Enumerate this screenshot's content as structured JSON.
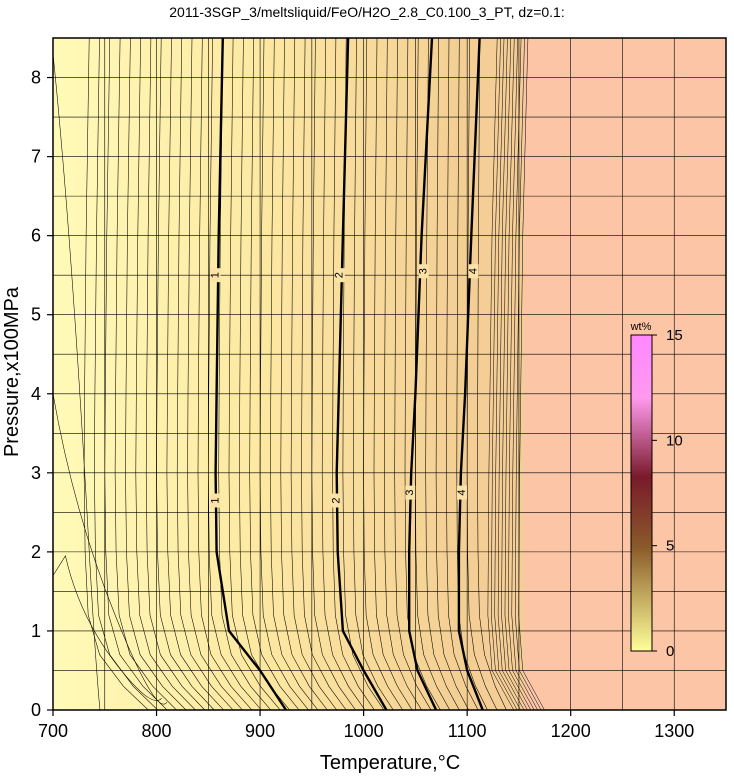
{
  "chart_data": {
    "type": "contour",
    "title": "2011-3SGP_3/meltsliquid/FeO/H2O_2.8_C0.100_3_PT, dz=0.1:",
    "xlabel": "Temperature,°C",
    "ylabel": "Pressure,x100MPa",
    "xlim": [
      700,
      1350
    ],
    "ylim": [
      0,
      8.5
    ],
    "x_ticks": [
      700,
      800,
      900,
      1000,
      1100,
      1200,
      1300
    ],
    "y_ticks": [
      0,
      1,
      2,
      3,
      4,
      5,
      6,
      7,
      8
    ],
    "grid": true,
    "contour_interval": 0.1,
    "major_contours": [
      {
        "level": "1",
        "points": [
          [
            925,
            0
          ],
          [
            900,
            0.5
          ],
          [
            870,
            1.0
          ],
          [
            858,
            2.0
          ],
          [
            857,
            3.0
          ],
          [
            858,
            4.0
          ],
          [
            860,
            6.0
          ],
          [
            864,
            8.5
          ]
        ]
      },
      {
        "level": "2",
        "points": [
          [
            1022,
            0
          ],
          [
            1000,
            0.5
          ],
          [
            980,
            1.0
          ],
          [
            975,
            2.0
          ],
          [
            974,
            3.0
          ],
          [
            976,
            4.0
          ],
          [
            980,
            6.0
          ],
          [
            985,
            8.5
          ]
        ]
      },
      {
        "level": "3",
        "points": [
          [
            1070,
            0
          ],
          [
            1052,
            0.5
          ],
          [
            1044,
            1.0
          ],
          [
            1044,
            2.0
          ],
          [
            1046,
            3.0
          ],
          [
            1050,
            4.0
          ],
          [
            1056,
            6.0
          ],
          [
            1066,
            8.5
          ]
        ]
      },
      {
        "level": "4",
        "points": [
          [
            1115,
            0
          ],
          [
            1100,
            0.5
          ],
          [
            1092,
            1.0
          ],
          [
            1092,
            2.0
          ],
          [
            1094,
            3.0
          ],
          [
            1098,
            4.0
          ],
          [
            1104,
            6.0
          ],
          [
            1112,
            8.5
          ]
        ]
      }
    ],
    "contour_labels": [
      {
        "text": "1",
        "x": 857,
        "y": 5.5
      },
      {
        "text": "1",
        "x": 857,
        "y": 2.65
      },
      {
        "text": "2",
        "x": 977,
        "y": 5.5
      },
      {
        "text": "2",
        "x": 974,
        "y": 2.65
      },
      {
        "text": "3",
        "x": 1058,
        "y": 5.55
      },
      {
        "text": "3",
        "x": 1045,
        "y": 2.75
      },
      {
        "text": "4",
        "x": 1106,
        "y": 5.55
      },
      {
        "text": "4",
        "x": 1095,
        "y": 2.75
      }
    ],
    "saturated_region": {
      "color": "#fbc5a6",
      "x_from": 1155
    },
    "colorbar": {
      "label": "wt%",
      "range": [
        0,
        15
      ],
      "ticks": [
        0,
        5,
        10,
        15
      ],
      "placement": "right-center",
      "colors": [
        "#ffff99",
        "#7a1a2a",
        "#ff99ff"
      ]
    },
    "colors": {
      "low": "#fff8b0",
      "mid": "#f6d79a",
      "saturated": "#fbc5a6"
    }
  }
}
